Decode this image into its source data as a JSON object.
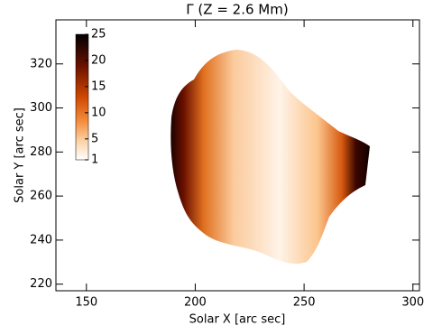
{
  "chart_data": {
    "type": "image",
    "title": "Γ (Z = 2.6 Mm)",
    "x_label": "Solar X [arc sec]",
    "y_label": "Solar Y [arc sec]",
    "xlim": [
      136,
      303
    ],
    "xticks": [
      150,
      200,
      250,
      300
    ],
    "ylim": [
      217,
      340
    ],
    "yticks": [
      220,
      240,
      260,
      280,
      300,
      320
    ],
    "colorbar": {
      "lim": [
        1,
        25
      ],
      "ticks": [
        1,
        5,
        10,
        15,
        20,
        25
      ]
    }
  }
}
